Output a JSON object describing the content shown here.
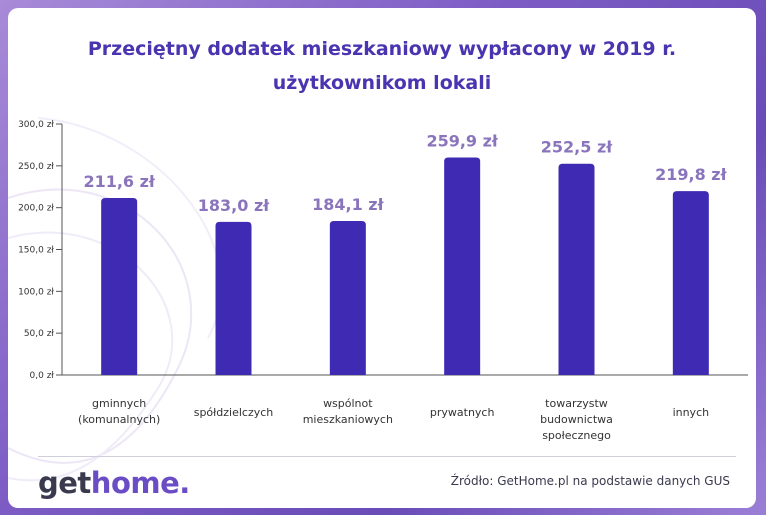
{
  "title_line1": "Przeciętny dodatek mieszkaniowy wypłacony w 2019 r.",
  "title_line2": "użytkownikom lokali",
  "logo": {
    "part1": "get",
    "part2": "home."
  },
  "source": "Źródło: GetHome.pl na podstawie danych GUS",
  "colors": {
    "bar": "#3f2bb3",
    "label": "#8a74bc",
    "title": "#4a34b0"
  },
  "chart_data": {
    "type": "bar",
    "title": "Przeciętny dodatek mieszkaniowy wypłacony w 2019 r. użytkownikom lokali",
    "categories": [
      [
        "gminnych",
        "(komunalnych)"
      ],
      [
        "spółdzielczych"
      ],
      [
        "wspólnot",
        "mieszkaniowych"
      ],
      [
        "prywatnych"
      ],
      [
        "towarzystw",
        "budownictwa",
        "społecznego"
      ],
      [
        "innych"
      ]
    ],
    "values": [
      211.6,
      183.0,
      184.1,
      259.9,
      252.5,
      219.8
    ],
    "data_labels": [
      "211,6 zł",
      "183,0 zł",
      "184,1 zł",
      "259,9 zł",
      "252,5 zł",
      "219,8 zł"
    ],
    "yticks": [
      "0,0 zł",
      "50,0 zł",
      "100,0 zł",
      "150,0 zł",
      "200,0 zł",
      "250,0 zł",
      "300,0 zł"
    ],
    "ylim": [
      0,
      300
    ],
    "grid": false,
    "legend": "none"
  }
}
